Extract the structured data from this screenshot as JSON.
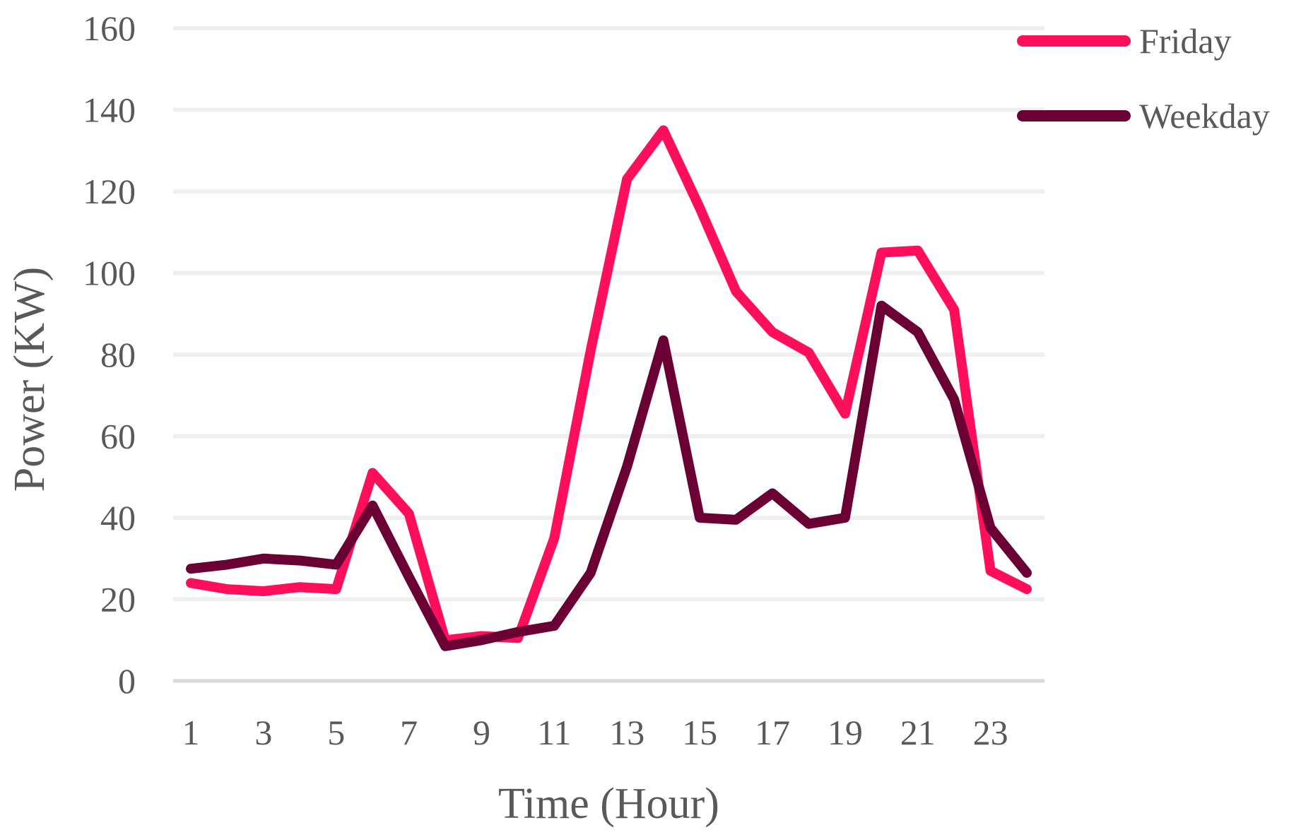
{
  "chart_data": {
    "type": "line",
    "title": "",
    "xlabel": "Time (Hour)",
    "ylabel": "Power (KW)",
    "x": [
      1,
      2,
      3,
      4,
      5,
      6,
      7,
      8,
      9,
      10,
      11,
      12,
      13,
      14,
      15,
      16,
      17,
      18,
      19,
      20,
      21,
      22,
      23,
      24
    ],
    "x_tick_labels": [
      "1",
      "3",
      "5",
      "7",
      "9",
      "11",
      "13",
      "15",
      "17",
      "19",
      "21",
      "23"
    ],
    "y_tick_labels": [
      "0",
      "20",
      "40",
      "60",
      "80",
      "100",
      "120",
      "140",
      "160"
    ],
    "ylim": [
      0,
      160
    ],
    "grid": true,
    "legend_position": "top-right",
    "series": [
      {
        "name": "Friday",
        "color": "#ff0f5b",
        "values": [
          24,
          22.5,
          22,
          23,
          22.5,
          51,
          41,
          10,
          11,
          10.5,
          35,
          81,
          123,
          135,
          116,
          95.5,
          85.5,
          80.5,
          65.5,
          105,
          105.5,
          91,
          27,
          22.5
        ]
      },
      {
        "name": "Weekday",
        "color": "#6b0035",
        "values": [
          27.5,
          28.5,
          30,
          29.5,
          28.5,
          43,
          25.5,
          8.5,
          10,
          12,
          13.5,
          26.5,
          52.5,
          83.5,
          40,
          39.5,
          46,
          38.5,
          40,
          92,
          85.5,
          69,
          37.5,
          26.5
        ]
      }
    ]
  }
}
